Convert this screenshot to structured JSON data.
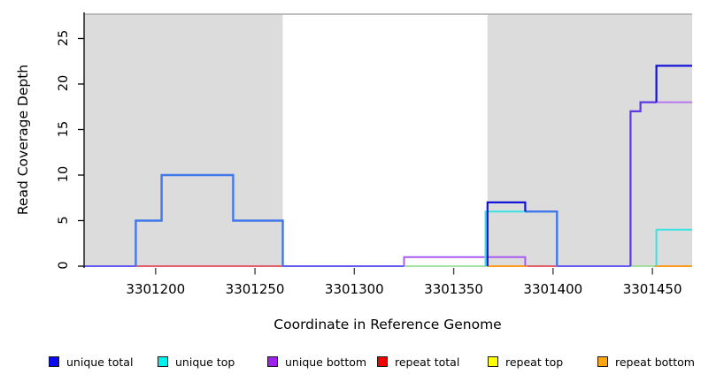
{
  "chart_data": {
    "type": "step-line",
    "title": "",
    "xlabel": "Coordinate in Reference Genome",
    "ylabel": "Read Coverage Depth",
    "x_ticks": [
      3301200,
      3301250,
      3301300,
      3301350,
      3301400,
      3301450
    ],
    "y_ticks": [
      0,
      5,
      10,
      15,
      20,
      25
    ],
    "xlim": [
      3301164,
      3301470
    ],
    "ylim": [
      0,
      27.6
    ],
    "grid": false,
    "background_shading": {
      "color": "#DCDCDC",
      "top_border_color": "#ABABAB",
      "regions": [
        [
          3301164,
          3301264
        ],
        [
          3301367,
          3301470
        ]
      ]
    },
    "series": [
      {
        "name": "unique total",
        "color": "#0000EE",
        "steps": [
          [
            3301164,
            0
          ],
          [
            3301190,
            5
          ],
          [
            3301203,
            10
          ],
          [
            3301239,
            5
          ],
          [
            3301264,
            0
          ],
          [
            3301367,
            7
          ],
          [
            3301386,
            6
          ],
          [
            3301402,
            0
          ],
          [
            3301439,
            17
          ],
          [
            3301444,
            18
          ],
          [
            3301452,
            22
          ],
          [
            3301470,
            22
          ]
        ]
      },
      {
        "name": "unique top",
        "color": "#00FFFF",
        "steps": [
          [
            3301164,
            0
          ],
          [
            3301367,
            6
          ],
          [
            3301402,
            0
          ],
          [
            3301452,
            4
          ],
          [
            3301470,
            4
          ]
        ]
      },
      {
        "name": "unique bottom",
        "color": "#A020F0",
        "steps": [
          [
            3301164,
            0
          ],
          [
            3301325,
            1
          ],
          [
            3301386,
            0
          ],
          [
            3301439,
            17
          ],
          [
            3301444,
            18
          ],
          [
            3301470,
            18
          ]
        ]
      },
      {
        "name": "repeat total",
        "color": "#FF0000",
        "zero_depth_segments": [
          [
            3301190,
            3301264
          ],
          [
            3301387,
            3301402
          ]
        ]
      },
      {
        "name": "repeat top",
        "color": "#FFFF00",
        "rendered_line_color": "#98DB98",
        "zero_depth_segments": [
          [
            3301325,
            3301367
          ],
          [
            3301439,
            3301451
          ]
        ]
      },
      {
        "name": "repeat bottom",
        "color": "#FFA500",
        "zero_depth_segments": [
          [
            3301367,
            3301387
          ],
          [
            3301451,
            3301470
          ]
        ]
      }
    ],
    "render_polylines": [
      {
        "color": "#98DB98",
        "width": 1.8,
        "points": [
          [
            3301325,
            0
          ],
          [
            3301367,
            0
          ]
        ]
      },
      {
        "color": "#98DB98",
        "width": 1.8,
        "points": [
          [
            3301439,
            0
          ],
          [
            3301451,
            0
          ]
        ]
      },
      {
        "color": "#FF9E1E",
        "width": 2.0,
        "points": [
          [
            3301367,
            0
          ],
          [
            3301387,
            0
          ]
        ]
      },
      {
        "color": "#FF9E1E",
        "width": 2.0,
        "points": [
          [
            3301451,
            0
          ],
          [
            3301470,
            0
          ]
        ]
      },
      {
        "color": "#E04858",
        "width": 1.8,
        "points": [
          [
            3301190,
            0
          ],
          [
            3301264,
            0
          ]
        ]
      },
      {
        "color": "#E04858",
        "width": 1.8,
        "points": [
          [
            3301387,
            0
          ],
          [
            3301402,
            0
          ]
        ]
      },
      {
        "color": "#655AF0",
        "width": 2.0,
        "points": [
          [
            3301164,
            0
          ],
          [
            3301190,
            0
          ]
        ]
      },
      {
        "color": "#655AF0",
        "width": 2.0,
        "points": [
          [
            3301264,
            0
          ],
          [
            3301325,
            0
          ]
        ]
      },
      {
        "color": "#655AF0",
        "width": 2.0,
        "points": [
          [
            3301402,
            0
          ],
          [
            3301439,
            0
          ]
        ]
      },
      {
        "color": "#A85CEE",
        "width": 2.0,
        "points": [
          [
            3301325,
            0
          ],
          [
            3301325,
            1
          ],
          [
            3301386,
            1
          ],
          [
            3301386,
            0
          ]
        ]
      },
      {
        "color": "#B678EC",
        "width": 2.0,
        "points": [
          [
            3301452,
            18
          ],
          [
            3301470,
            18
          ]
        ]
      },
      {
        "color": "#3CE1E1",
        "width": 2.0,
        "points": [
          [
            3301366,
            0
          ],
          [
            3301366,
            6
          ],
          [
            3301402,
            6
          ]
        ]
      },
      {
        "color": "#3CE1E1",
        "width": 2.0,
        "points": [
          [
            3301452,
            0
          ],
          [
            3301452,
            4
          ],
          [
            3301470,
            4
          ]
        ]
      },
      {
        "color": "#4177EA",
        "width": 2.4,
        "points": [
          [
            3301190,
            0
          ],
          [
            3301190,
            5
          ],
          [
            3301203,
            5
          ],
          [
            3301203,
            10
          ],
          [
            3301239,
            10
          ],
          [
            3301239,
            5
          ],
          [
            3301264,
            5
          ],
          [
            3301264,
            0
          ]
        ]
      },
      {
        "color": "#4177EA",
        "width": 2.4,
        "points": [
          [
            3301386,
            6
          ],
          [
            3301402,
            6
          ],
          [
            3301402,
            0
          ]
        ]
      },
      {
        "color": "#5F35E5",
        "width": 2.2,
        "points": [
          [
            3301439,
            0
          ],
          [
            3301439,
            17
          ],
          [
            3301444,
            17
          ],
          [
            3301444,
            18
          ],
          [
            3301452,
            18
          ]
        ]
      },
      {
        "color": "#1414D8",
        "width": 2.2,
        "points": [
          [
            3301367,
            0
          ],
          [
            3301367,
            7
          ],
          [
            3301386,
            7
          ],
          [
            3301386,
            6
          ]
        ]
      },
      {
        "color": "#1414D8",
        "width": 2.2,
        "points": [
          [
            3301452,
            18
          ],
          [
            3301452,
            22
          ],
          [
            3301470,
            22
          ]
        ]
      }
    ],
    "legend": {
      "position": "bottom",
      "items": [
        {
          "label": "unique total",
          "swatch": "#0A0AF0"
        },
        {
          "label": "unique top",
          "swatch": "#00F0F0"
        },
        {
          "label": "unique bottom",
          "swatch": "#A020F0"
        },
        {
          "label": "repeat total",
          "swatch": "#F00000"
        },
        {
          "label": "repeat top",
          "swatch": "#FFFF00"
        },
        {
          "label": "repeat bottom",
          "swatch": "#FFA510"
        }
      ]
    }
  }
}
